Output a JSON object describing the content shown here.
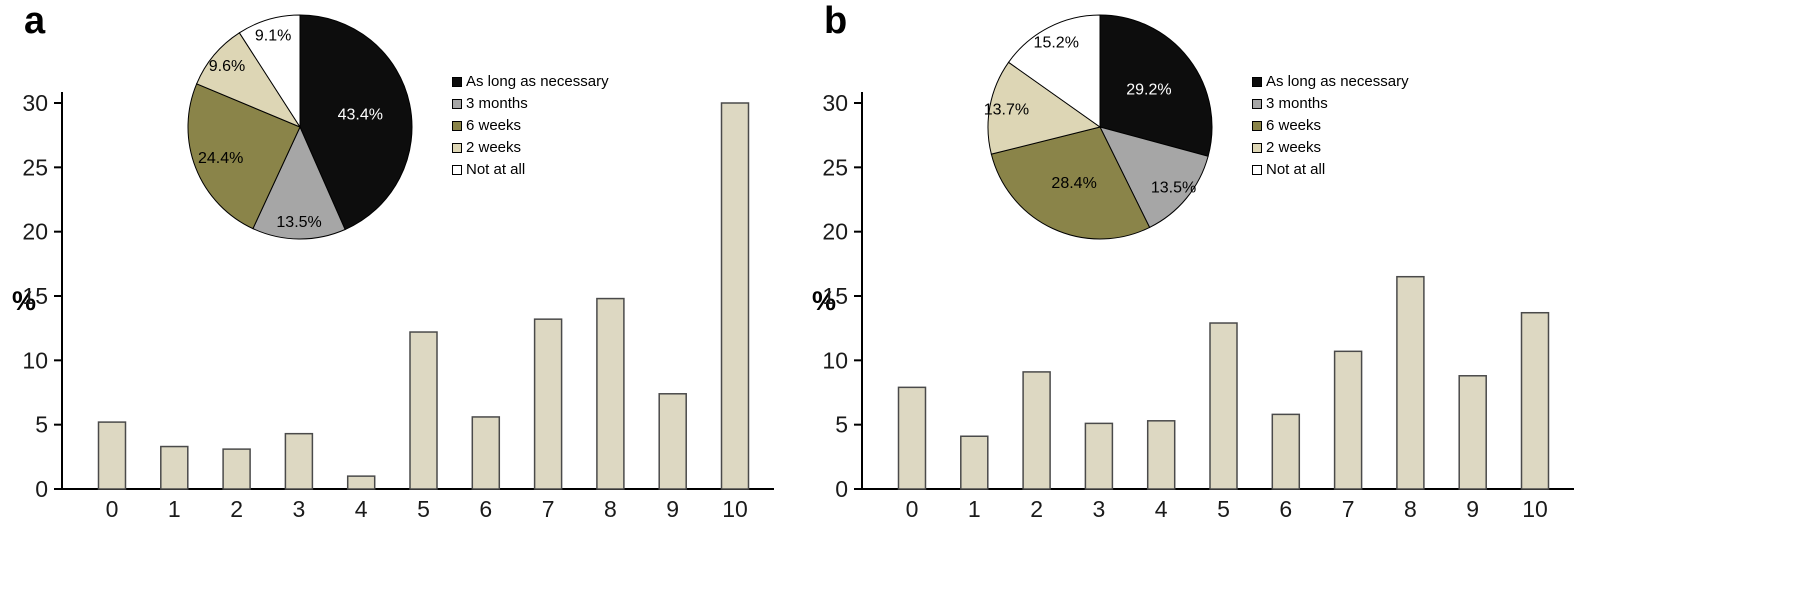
{
  "chart_panels": [
    {
      "label": "a"
    },
    {
      "label": "b"
    }
  ],
  "colors": {
    "bar_fill": "#ddd8c2",
    "bar_stroke": "#4a4a4a",
    "axis": "#000000",
    "tick_text": "#1a1a1a",
    "pie_black": "#0d0d0d",
    "pie_gray": "#a6a6a6",
    "pie_olive": "#8a8449",
    "pie_tan": "#ddd6b5",
    "pie_white": "#ffffff"
  },
  "chart_data": [
    {
      "panel": "a",
      "type": "bar",
      "title": "",
      "xlabel": "",
      "ylabel": "%",
      "ylim": [
        0,
        30
      ],
      "yticks": [
        0,
        5,
        10,
        15,
        20,
        25,
        30
      ],
      "grid": false,
      "categories": [
        "0",
        "1",
        "2",
        "3",
        "4",
        "5",
        "6",
        "7",
        "8",
        "9",
        "10"
      ],
      "values": [
        5.2,
        3.3,
        3.1,
        4.3,
        1.0,
        12.2,
        5.6,
        13.2,
        14.8,
        7.4,
        30.0
      ]
    },
    {
      "panel": "a",
      "type": "pie",
      "labels": [
        "As long as necessary",
        "3 months",
        "6 weeks",
        "2 weeks",
        "Not at all"
      ],
      "values": [
        43.4,
        13.5,
        24.4,
        9.6,
        9.1
      ],
      "display_labels": [
        "43.4%",
        "13.5%",
        "24.4%",
        "9.6%",
        "9.1%"
      ],
      "colors": [
        "#0d0d0d",
        "#a6a6a6",
        "#8a8449",
        "#ddd6b5",
        "#ffffff"
      ],
      "label_text_colors": [
        "#ffffff",
        "#000000",
        "#000000",
        "#000000",
        "#000000"
      ],
      "legend_position": "right"
    },
    {
      "panel": "b",
      "type": "bar",
      "title": "",
      "xlabel": "",
      "ylabel": "%",
      "ylim": [
        0,
        30
      ],
      "yticks": [
        0,
        5,
        10,
        15,
        20,
        25,
        30
      ],
      "grid": false,
      "categories": [
        "0",
        "1",
        "2",
        "3",
        "4",
        "5",
        "6",
        "7",
        "8",
        "9",
        "10"
      ],
      "values": [
        7.9,
        4.1,
        9.1,
        5.1,
        5.3,
        12.9,
        5.8,
        10.7,
        16.5,
        8.8,
        13.7
      ]
    },
    {
      "panel": "b",
      "type": "pie",
      "labels": [
        "As long as necessary",
        "3 months",
        "6 weeks",
        "2 weeks",
        "Not at all"
      ],
      "values": [
        29.2,
        13.5,
        28.4,
        13.7,
        15.2
      ],
      "display_labels": [
        "29.2%",
        "13.5%",
        "28.4%",
        "13.7%",
        "15.2%"
      ],
      "colors": [
        "#0d0d0d",
        "#a6a6a6",
        "#8a8449",
        "#ddd6b5",
        "#ffffff"
      ],
      "label_text_colors": [
        "#ffffff",
        "#000000",
        "#000000",
        "#000000",
        "#000000"
      ],
      "legend_position": "right"
    }
  ]
}
